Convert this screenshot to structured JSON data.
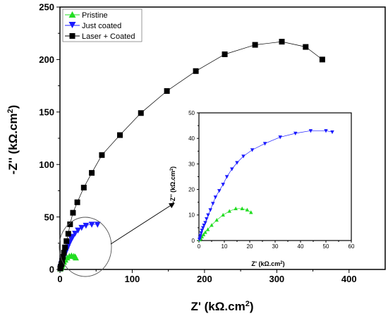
{
  "chart_data": [
    {
      "type": "scatter",
      "panel": "main",
      "xlabel_main": "Z' (kΩ.cm",
      "xlabel_sup": "2",
      "xlabel_close": ")",
      "ylabel_main": "-Z'' (kΩ.cm",
      "ylabel_sup": "2",
      "ylabel_close": ")",
      "xlim": [
        0,
        450
      ],
      "ylim": [
        0,
        250
      ],
      "xticks": [
        0,
        100,
        200,
        300,
        400
      ],
      "yticks": [
        0,
        50,
        100,
        150,
        200,
        250
      ],
      "legend": {
        "placement": "top-left"
      },
      "series": [
        {
          "name": "Pristine",
          "color": "#22dd22",
          "marker": "triangle-up",
          "x": [
            0.5,
            1,
            1.5,
            2.2,
            3,
            4,
            5.5,
            7.5,
            10,
            13,
            16,
            19,
            21,
            22
          ],
          "y": [
            0.5,
            1.2,
            2,
            3,
            4.2,
            5.5,
            7,
            9,
            11,
            12.5,
            13,
            12.5,
            12,
            11
          ]
        },
        {
          "name": "Just coated",
          "color": "#1a1aff",
          "marker": "triangle-down",
          "x": [
            0.5,
            1,
            1.5,
            2,
            2.5,
            3,
            4,
            5,
            6,
            7.5,
            9,
            10.5,
            12,
            14,
            16,
            18,
            21,
            25,
            30,
            36,
            44,
            52
          ],
          "y": [
            1,
            2,
            3,
            4.5,
            6,
            7.5,
            9.5,
            11.5,
            13.5,
            16,
            18.5,
            21,
            23.5,
            26.5,
            29,
            31.5,
            34.5,
            37.5,
            40,
            42,
            43,
            43
          ]
        },
        {
          "name": "Laser + Coated",
          "color": "#000000",
          "marker": "square",
          "x": [
            0.5,
            1,
            2,
            3,
            4,
            5.5,
            7,
            9,
            11.5,
            14,
            18,
            24,
            33,
            44,
            58,
            83,
            112,
            148,
            188,
            228,
            270,
            307,
            340,
            363
          ],
          "y": [
            1,
            2.5,
            5,
            8,
            12,
            16,
            21,
            27,
            34,
            43,
            54,
            64,
            78,
            92,
            109,
            128,
            149,
            170,
            189,
            205,
            214,
            217,
            212,
            200
          ]
        }
      ]
    },
    {
      "type": "scatter",
      "panel": "inset",
      "xlabel_main": "Z' (kΩ.cm",
      "xlabel_sup": "2",
      "xlabel_close": ")",
      "ylabel_main": "-Z'' (kΩ.cm",
      "ylabel_sup": "2",
      "ylabel_close": ")",
      "xlim": [
        0,
        60
      ],
      "ylim": [
        0,
        50
      ],
      "xticks": [
        0,
        10,
        20,
        30,
        40,
        50,
        60
      ],
      "yticks": [
        0,
        10,
        20,
        30,
        40,
        50
      ],
      "series": [
        {
          "name": "Pristine",
          "color": "#22dd22",
          "marker": "triangle-up",
          "x": [
            0.3,
            0.7,
            1.2,
            1.8,
            2.5,
            3.5,
            5,
            7,
            9.5,
            12,
            14.5,
            17,
            19,
            20.5
          ],
          "y": [
            0.3,
            0.8,
            1.5,
            2.3,
            3.2,
            4.3,
            6,
            8,
            10,
            11.5,
            12.5,
            12.5,
            12,
            11
          ]
        },
        {
          "name": "Just coated",
          "color": "#1a1aff",
          "marker": "triangle-down",
          "x": [
            0.2,
            0.4,
            0.6,
            0.9,
            1.2,
            1.6,
            2,
            2.5,
            3,
            3.6,
            4.5,
            5.5,
            6.5,
            8,
            9.5,
            11,
            13,
            15,
            17.5,
            21,
            26,
            32,
            38,
            44,
            50,
            52.5
          ],
          "y": [
            0.5,
            1.2,
            2,
            3,
            4,
            5,
            6,
            7,
            8.5,
            10,
            12,
            14.5,
            17,
            19.5,
            22,
            25,
            28,
            30.5,
            33,
            35.5,
            38,
            40.5,
            42,
            43,
            43,
            42.5
          ]
        }
      ]
    }
  ]
}
